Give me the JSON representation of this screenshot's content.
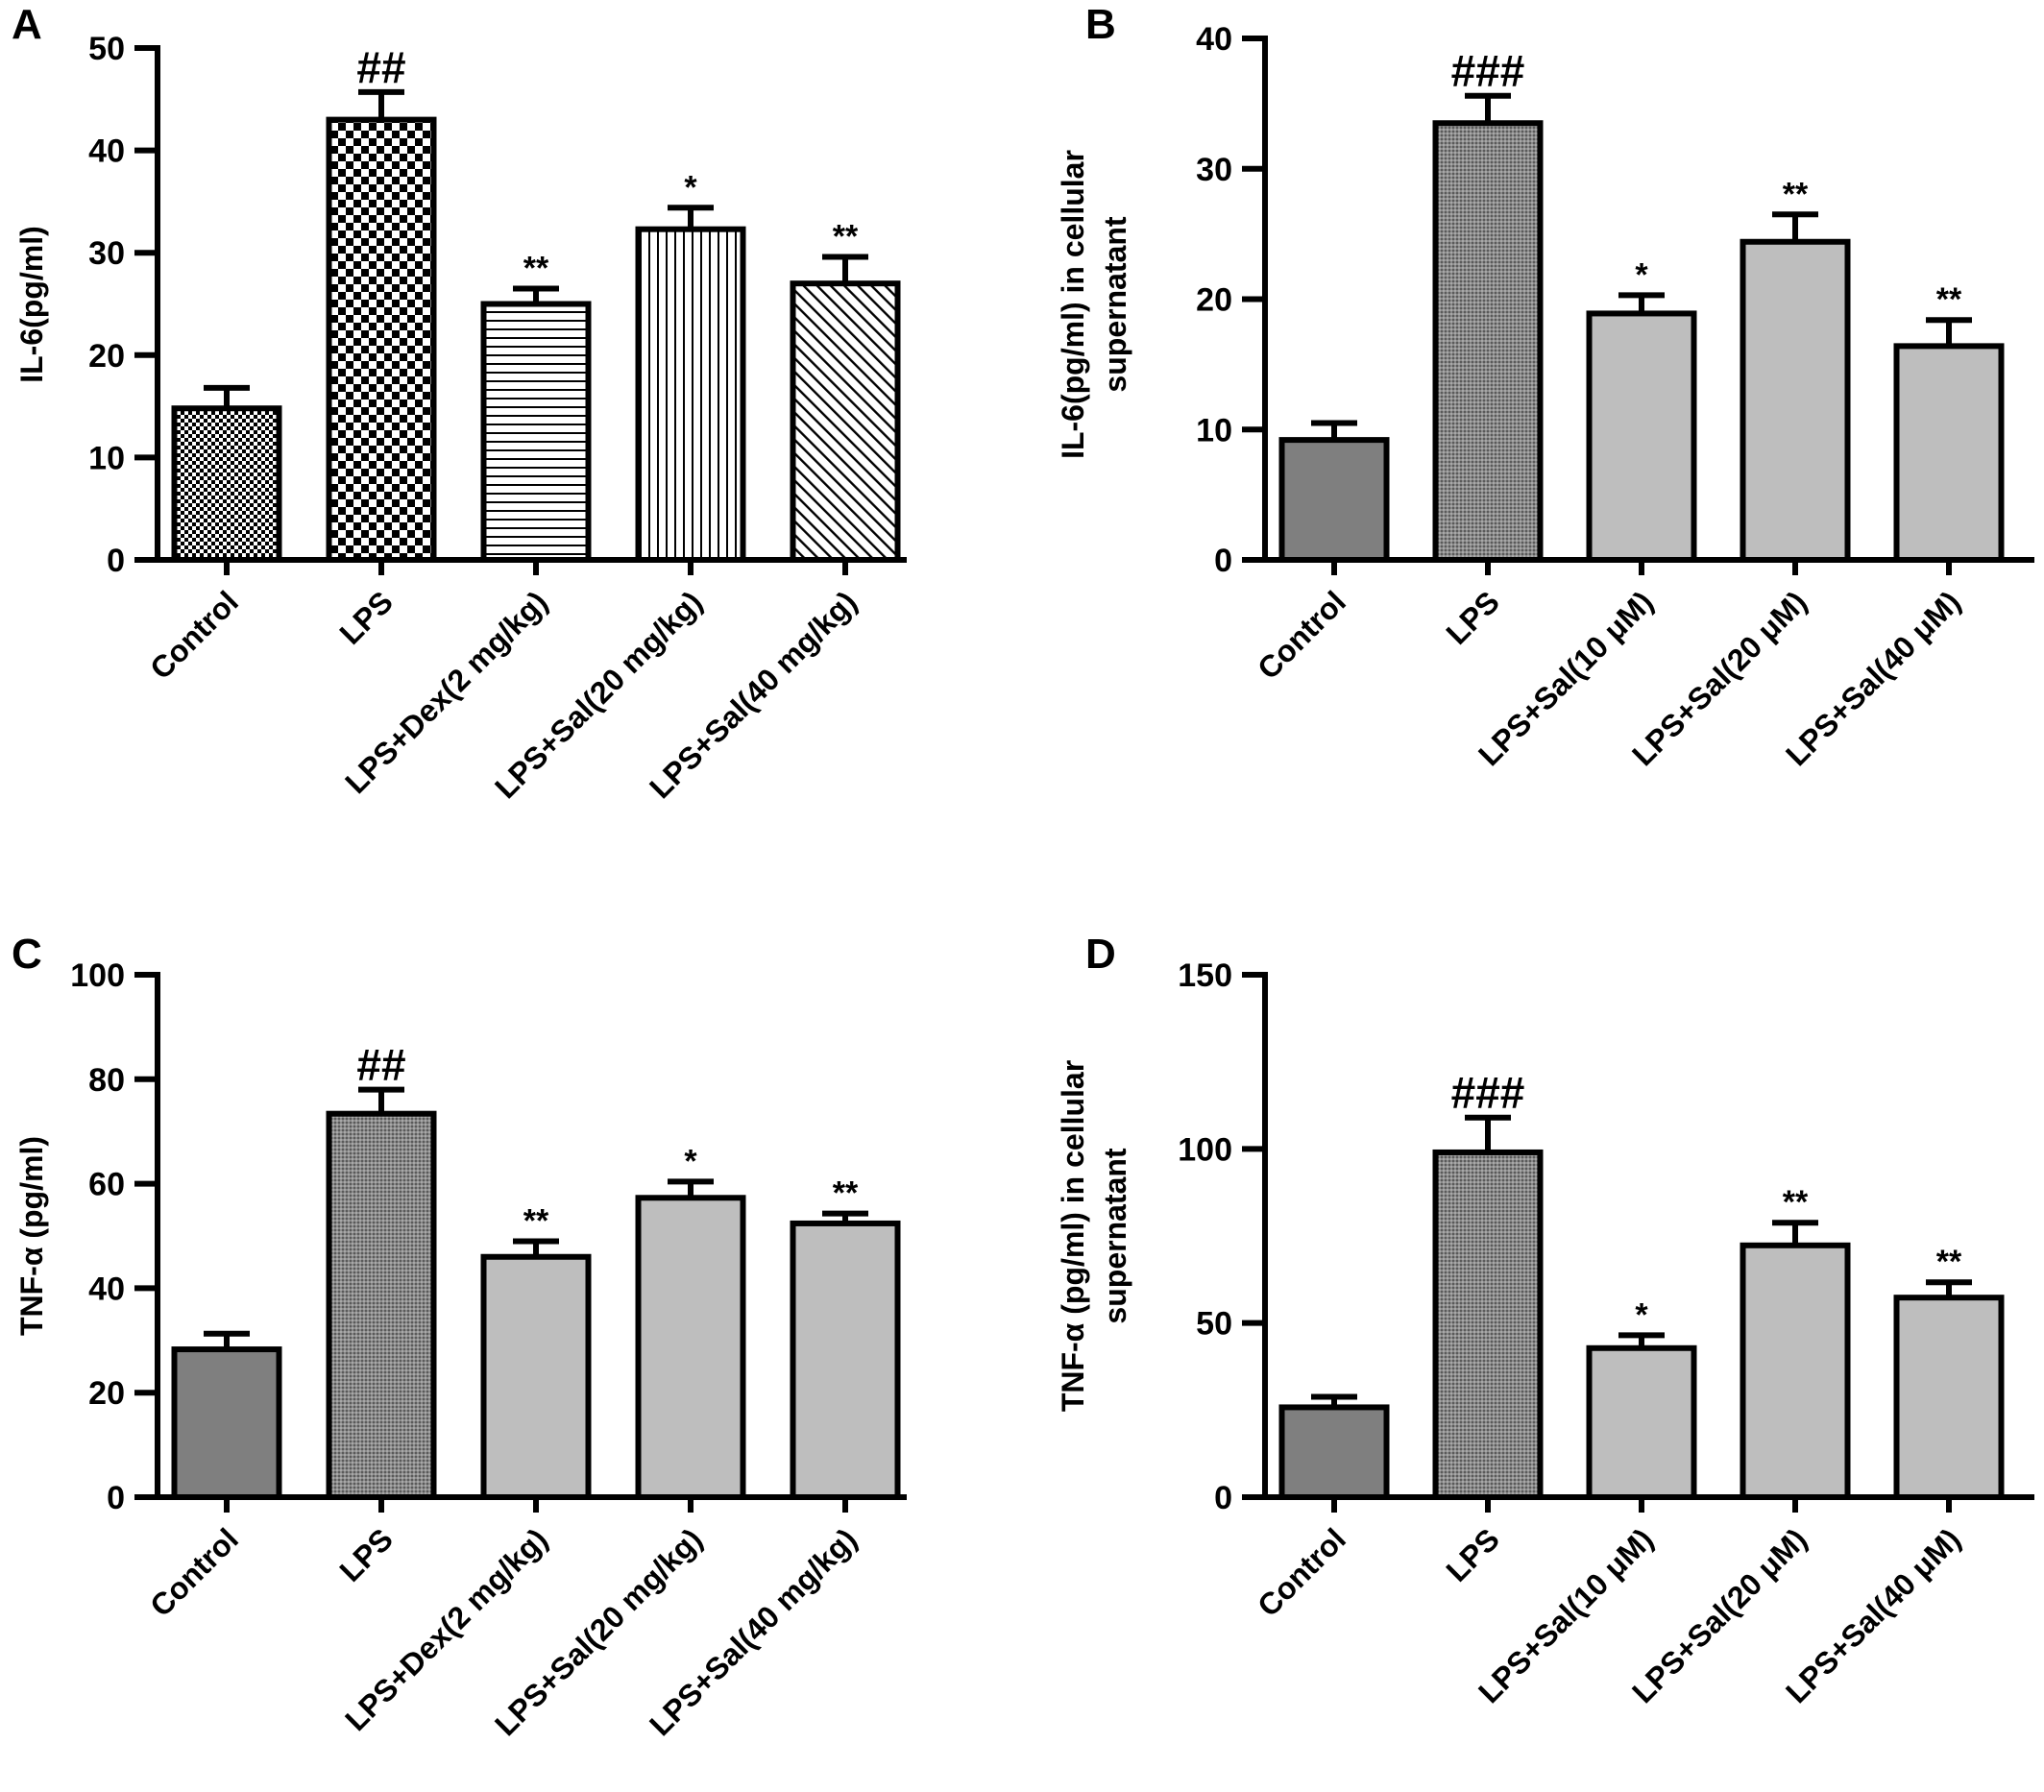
{
  "figure": {
    "panels": [
      "A",
      "B",
      "C",
      "D"
    ]
  },
  "chart_data": [
    {
      "panel": "A",
      "type": "bar",
      "ylabel": "IL-6(pg/ml)",
      "ylim": [
        0,
        50
      ],
      "yticks": [
        0,
        10,
        20,
        30,
        40,
        50
      ],
      "categories": [
        "Control",
        "LPS",
        "LPS+Dex(2 mg/kg)",
        "LPS+Sal(20 mg/kg)",
        "LPS+Sal(40 mg/kg)"
      ],
      "values": [
        14.8,
        43.0,
        25.0,
        32.3,
        27.0
      ],
      "errors": [
        2.0,
        2.7,
        1.5,
        2.1,
        2.6
      ],
      "significance": [
        "",
        "##",
        "**",
        "*",
        "**"
      ],
      "fills": [
        "pattern-fine-check",
        "pattern-check",
        "pattern-hlines",
        "pattern-vlines",
        "pattern-diag"
      ],
      "grid": false
    },
    {
      "panel": "B",
      "type": "bar",
      "ylabel": [
        "IL-6(pg/ml) in cellular",
        "supernatant"
      ],
      "ylim": [
        0,
        40
      ],
      "yticks": [
        0,
        10,
        20,
        30,
        40
      ],
      "categories": [
        "Control",
        "LPS",
        "LPS+Sal(10 μM)",
        "LPS+Sal(20 μM)",
        "LPS+Sal(40 μM)"
      ],
      "values": [
        9.2,
        33.5,
        18.9,
        24.4,
        16.4
      ],
      "errors": [
        1.3,
        2.1,
        1.4,
        2.1,
        2.0
      ],
      "significance": [
        "",
        "###",
        "*",
        "**",
        "**"
      ],
      "fills": [
        "#7f7f7f",
        "pattern-dot-dark",
        "#bebebe",
        "#bebebe",
        "#bebebe"
      ],
      "grid": false
    },
    {
      "panel": "C",
      "type": "bar",
      "ylabel": "TNF-α (pg/ml)",
      "ylim": [
        0,
        100
      ],
      "yticks": [
        0,
        20,
        40,
        60,
        80,
        100
      ],
      "categories": [
        "Control",
        "LPS",
        "LPS+Dex(2 mg/kg)",
        "LPS+Sal(20 mg/kg)",
        "LPS+Sal(40 mg/kg)"
      ],
      "values": [
        28.3,
        73.4,
        46.0,
        57.3,
        52.4
      ],
      "errors": [
        3.0,
        4.6,
        3.0,
        3.1,
        1.9
      ],
      "significance": [
        "",
        "##",
        "**",
        "*",
        "**"
      ],
      "fills": [
        "#7f7f7f",
        "pattern-dot-dark",
        "#bebebe",
        "#bebebe",
        "#bebebe"
      ],
      "grid": false
    },
    {
      "panel": "D",
      "type": "bar",
      "ylabel": [
        "TNF-α (pg/ml) in cellular",
        "supernatant"
      ],
      "ylim": [
        0,
        150
      ],
      "yticks": [
        0,
        50,
        100,
        150
      ],
      "categories": [
        "Control",
        "LPS",
        "LPS+Sal(10 μM)",
        "LPS+Sal(20 μM)",
        "LPS+Sal(40 μM)"
      ],
      "values": [
        25.8,
        99.0,
        42.8,
        72.3,
        57.3
      ],
      "errors": [
        3.0,
        10.0,
        3.7,
        6.5,
        4.4
      ],
      "significance": [
        "",
        "###",
        "*",
        "**",
        "**"
      ],
      "fills": [
        "#7f7f7f",
        "pattern-dot-dark",
        "#bebebe",
        "#bebebe",
        "#bebebe"
      ],
      "grid": false
    }
  ]
}
